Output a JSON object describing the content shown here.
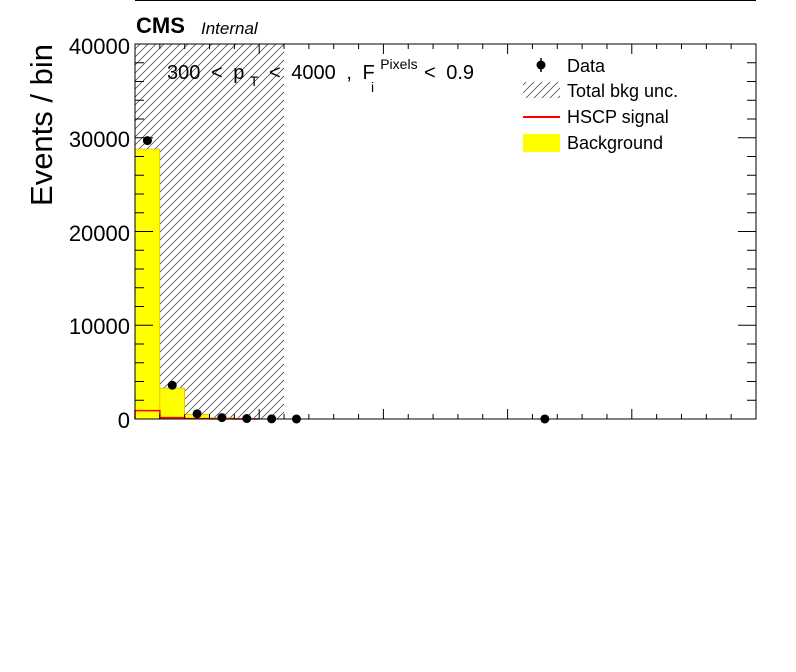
{
  "chart_data": {
    "type": "bar",
    "header": {
      "experiment": "CMS",
      "status": "Internal"
    },
    "ylabel": "Events / bin",
    "xlabel": "",
    "ylim": [
      0,
      40000
    ],
    "y_ticks": [
      "0",
      "10000",
      "20000",
      "30000",
      "40000"
    ],
    "y_tick_values": [
      0,
      10000,
      20000,
      30000,
      40000
    ],
    "selection": {
      "low": "300",
      "op1": "<",
      "var": "p",
      "var_sub": "T",
      "op2": "<",
      "high": "4000",
      "sep": ",",
      "var2": "F",
      "var2_sub": "i",
      "var2_sup": "Pixels",
      "op3": "<",
      "cut": "0.9"
    },
    "legend": {
      "placement": "top-right",
      "entries": [
        {
          "key": "data",
          "label": "Data"
        },
        {
          "key": "unc",
          "label": "Total bkg unc."
        },
        {
          "key": "signal",
          "label": "HSCP signal"
        },
        {
          "key": "bkg",
          "label": "Background"
        }
      ]
    },
    "bins": 25,
    "background": [
      28800,
      3300,
      500,
      120,
      40,
      15,
      5,
      0,
      0,
      0,
      0,
      0,
      0,
      0,
      0,
      0,
      0,
      0,
      0,
      0,
      0,
      0,
      0,
      0,
      0
    ],
    "signal": [
      900,
      150,
      40,
      10,
      0,
      0,
      0,
      0,
      0,
      0,
      0,
      0,
      0,
      0,
      0,
      0,
      0,
      0,
      0,
      0,
      0,
      0,
      0,
      0,
      0
    ],
    "unc_band": [
      40000,
      40000,
      40000,
      40000,
      40000,
      40000,
      0,
      0,
      0,
      0,
      0,
      0,
      0,
      0,
      0,
      0,
      0,
      0,
      0,
      0,
      0,
      0,
      0,
      0,
      0
    ],
    "data_points": [
      {
        "bin": 0,
        "y": 29700
      },
      {
        "bin": 1,
        "y": 3600
      },
      {
        "bin": 2,
        "y": 550
      },
      {
        "bin": 3,
        "y": 150
      },
      {
        "bin": 4,
        "y": 50
      },
      {
        "bin": 5,
        "y": 15
      },
      {
        "bin": 6,
        "y": 5
      },
      {
        "bin": 16,
        "y": 1
      }
    ],
    "colors": {
      "background": "#ffff00",
      "background_edge": "#d4a400",
      "signal": "#ff0000",
      "data": "#000000",
      "frame": "#000000"
    }
  }
}
